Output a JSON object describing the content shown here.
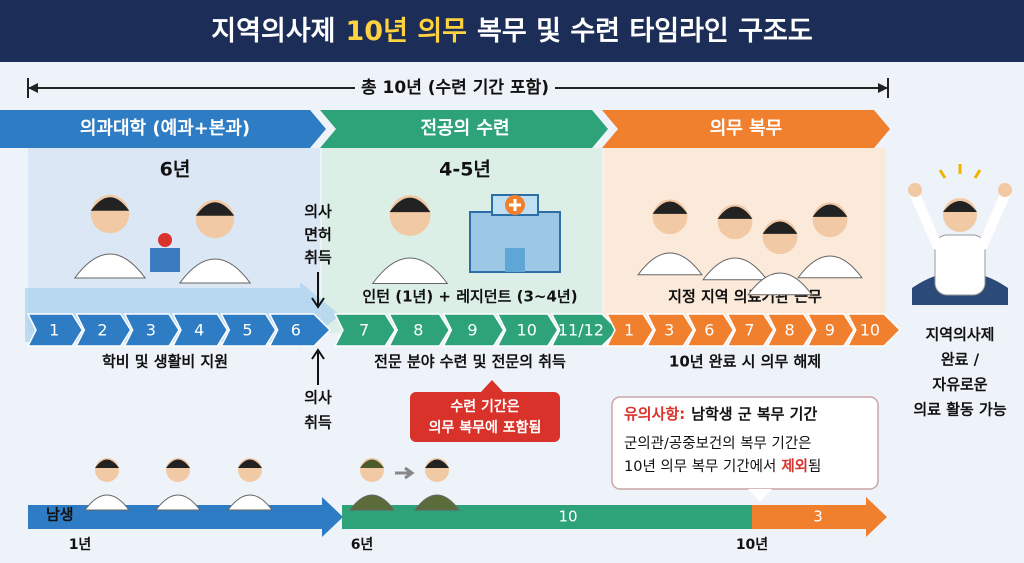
{
  "header": {
    "title_before": "지역의사제",
    "title_highlight": "10년 의무",
    "title_after": "복무 및 수련 타임라인 구조도"
  },
  "span_label": "총 10년 (수련 기간 포함)",
  "phases": [
    {
      "header": "의과대학 (예과+본과)",
      "duration": "6년",
      "steps": [
        "1",
        "2",
        "3",
        "4",
        "5",
        "6"
      ],
      "note": "학비 및 생활비 지원"
    },
    {
      "header": "전공의 수련",
      "duration": "4-5년",
      "caption": "인턴 (1년) + 레지던트 (3~4년)",
      "steps": [
        "7",
        "8",
        "9",
        "10",
        "11/12"
      ],
      "note": "전문 분야 수련 및 전문의 취득"
    },
    {
      "header": "의무 복무",
      "caption": "지정 지역 의료기관 근무",
      "steps": [
        "1",
        "3",
        "6",
        "7",
        "8",
        "9",
        "10"
      ],
      "note": "10년 완료 시 의무 해제"
    }
  ],
  "markers": [
    {
      "lines": [
        "의사",
        "면허",
        "취득"
      ]
    },
    {
      "lines": [
        "의사",
        "취득"
      ]
    }
  ],
  "callout": {
    "lines": [
      "수련 기간은",
      "의무 복무에 포함됨"
    ]
  },
  "final": {
    "lines": [
      "지역의사제",
      "완료 /",
      "자유로운",
      "의료 활동 가능"
    ]
  },
  "notice": {
    "label": "유의사항:",
    "title": "남학생 군 복무 기간",
    "line1": "군의관/공중보건의 복무 기간은",
    "line2_before": "10년 의무 복무 기간에서",
    "line2_highlight": "제외",
    "line2_after": "됨"
  },
  "male_track": {
    "label": "남생",
    "segments": [
      "10",
      "3"
    ],
    "ticks": [
      "1년",
      "6년",
      "10년"
    ]
  }
}
